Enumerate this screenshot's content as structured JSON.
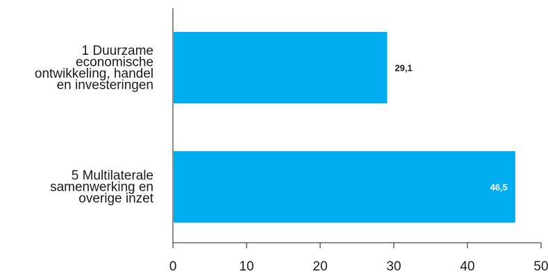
{
  "chart_data": {
    "type": "bar",
    "orientation": "horizontal",
    "categories": [
      [
        "1 Duurzame",
        "economische",
        "ontwikkeling, handel",
        "en investeringen"
      ],
      [
        "5 Multilaterale",
        "samenwerking en",
        "overige inzet"
      ]
    ],
    "values": [
      29.1,
      46.5
    ],
    "value_labels": [
      "29,1",
      "46,5"
    ],
    "value_label_position": [
      "outside",
      "inside"
    ],
    "bar_color": "#00aeef",
    "xlim": [
      0,
      50
    ],
    "xticks": [
      0,
      10,
      20,
      30,
      40,
      50
    ],
    "title": "",
    "xlabel": "",
    "ylabel": "",
    "grid": false,
    "legend": "none"
  }
}
